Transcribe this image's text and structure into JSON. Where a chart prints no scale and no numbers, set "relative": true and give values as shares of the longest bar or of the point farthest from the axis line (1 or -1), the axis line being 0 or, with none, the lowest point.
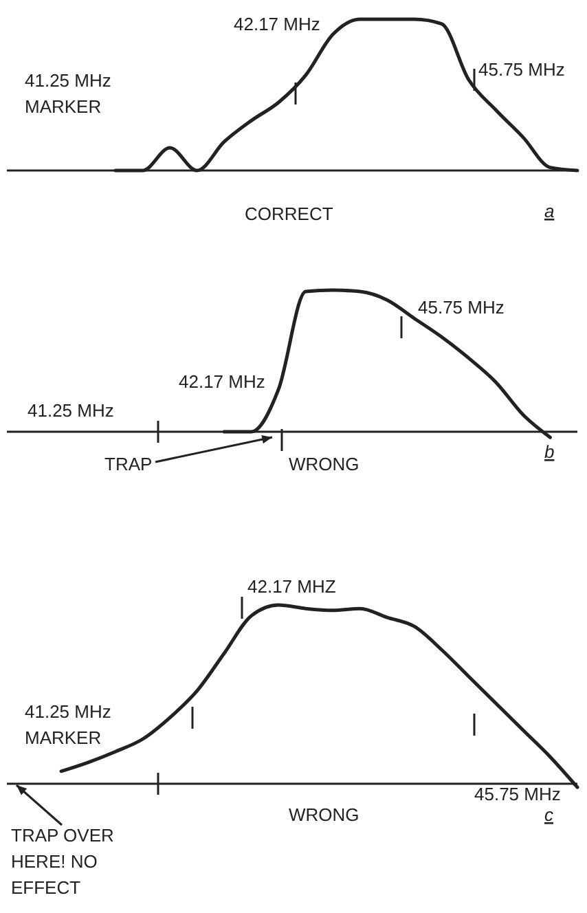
{
  "chart_data": [
    {
      "type": "line",
      "relative": true,
      "categories": [
        null,
        null,
        null,
        null,
        null,
        null,
        null,
        null,
        null,
        null,
        null,
        null,
        null,
        null,
        null,
        null,
        null,
        null,
        null,
        null,
        null,
        null
      ],
      "series": [
        {
          "color": "#222222",
          "values": [
            null,
            null,
            null,
            null,
            0,
            0,
            0.15,
            0,
            0.19,
            0.33,
            0.45,
            0.63,
            0.9,
            1,
            1,
            1,
            0.97,
            0.6,
            0.4,
            0.22,
            0.02,
            0
          ]
        }
      ],
      "annotations": [
        "41.25 MHz\nMARKER",
        "42.17 MHz",
        "45.75 MHz",
        "CORRECT",
        "a"
      ]
    },
    {
      "type": "line",
      "relative": true,
      "categories": [
        null,
        null,
        null,
        null,
        null,
        null,
        null,
        null,
        null,
        null,
        null,
        null,
        null,
        null,
        null,
        null,
        null,
        null,
        null,
        null,
        null,
        null
      ],
      "series": [
        {
          "color": "#222222",
          "values": [
            null,
            null,
            null,
            null,
            null,
            null,
            null,
            null,
            0,
            0,
            0.3,
            0.99,
            1,
            0.99,
            0.93,
            0.8,
            0.67,
            0.52,
            0.35,
            0.12,
            -0.04,
            null
          ]
        }
      ],
      "annotations": [
        "41.25 MHz",
        "42.17 MHz",
        "45.75 MHz",
        "TRAP",
        "WRONG",
        "b"
      ]
    },
    {
      "type": "line",
      "relative": true,
      "categories": [
        null,
        null,
        null,
        null,
        null,
        null,
        null,
        null,
        null,
        null,
        null,
        null,
        null,
        null,
        null,
        null,
        null,
        null,
        null,
        null,
        null,
        null
      ],
      "series": [
        {
          "color": "#222222",
          "values": [
            null,
            null,
            0.07,
            0.12,
            0.18,
            0.25,
            0.37,
            0.52,
            0.73,
            0.94,
            1,
            0.98,
            0.97,
            0.98,
            0.93,
            0.88,
            0.75,
            0.6,
            0.45,
            0.3,
            0.15,
            -0.02
          ]
        }
      ],
      "annotations": [
        "41.25 MHz\nMARKER",
        "42.17 MHZ",
        "45.75 MHz",
        "WRONG",
        "c",
        "TRAP OVER\nHERE! NO\nEFFECT"
      ]
    }
  ]
}
